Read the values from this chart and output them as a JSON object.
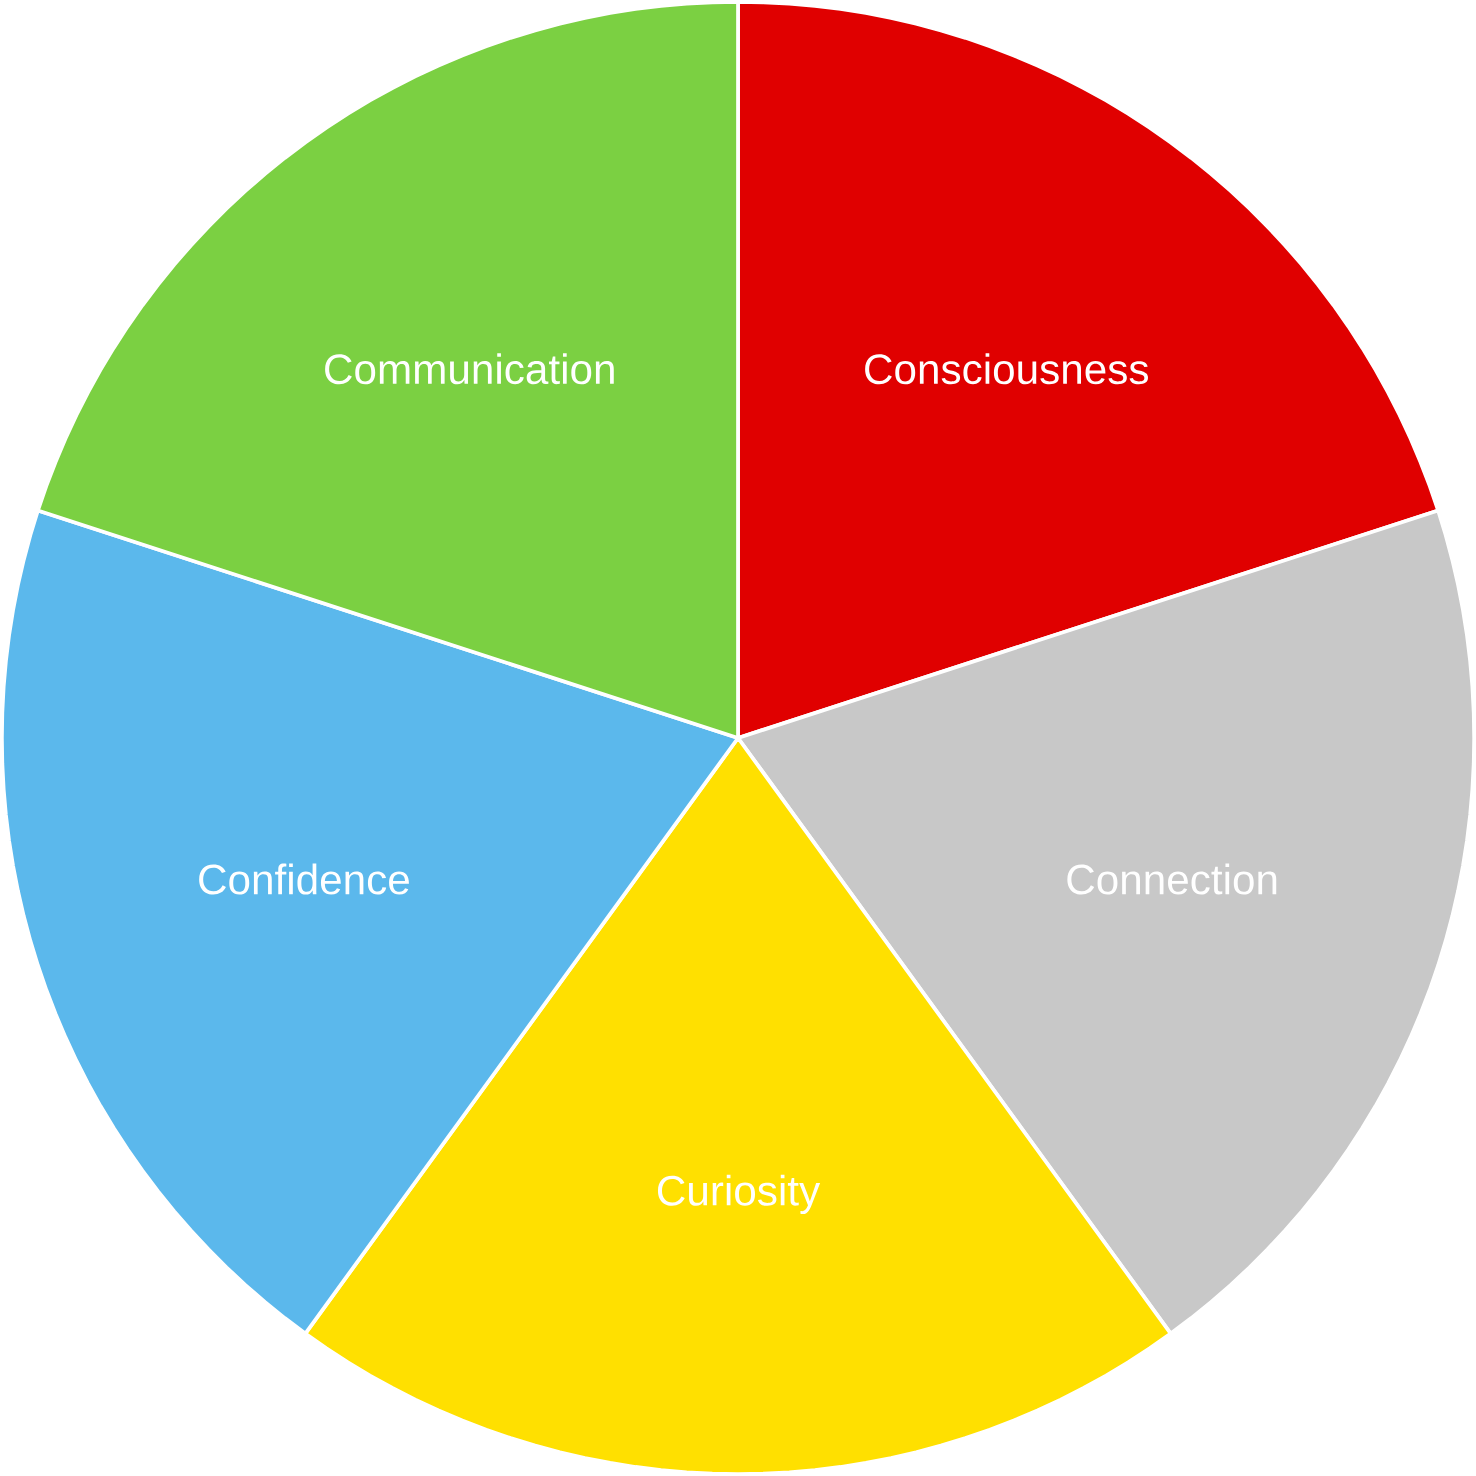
{
  "chart_data": {
    "type": "pie",
    "categories": [
      "Consciousness",
      "Connection",
      "Curiosity",
      "Confidence",
      "Communication"
    ],
    "values": [
      20,
      20,
      20,
      20,
      20
    ],
    "colors": [
      "#e00000",
      "#c8c8c8",
      "#ffe000",
      "#5bb8ec",
      "#7bd042"
    ]
  }
}
